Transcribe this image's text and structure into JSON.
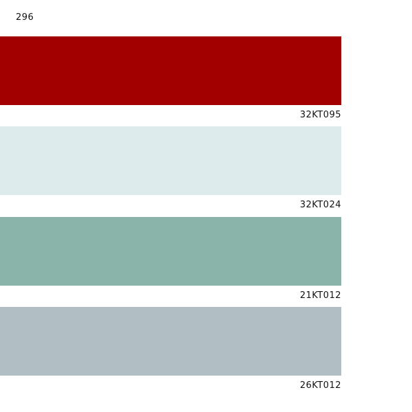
{
  "header": {
    "title": "296"
  },
  "swatches": [
    {
      "code": "32KT095",
      "color": "#a20000"
    },
    {
      "code": "32KT024",
      "color": "#deebed"
    },
    {
      "code": "21KT012",
      "color": "#8ab3aa"
    },
    {
      "code": "26KT012",
      "color": "#b1bec4"
    }
  ]
}
